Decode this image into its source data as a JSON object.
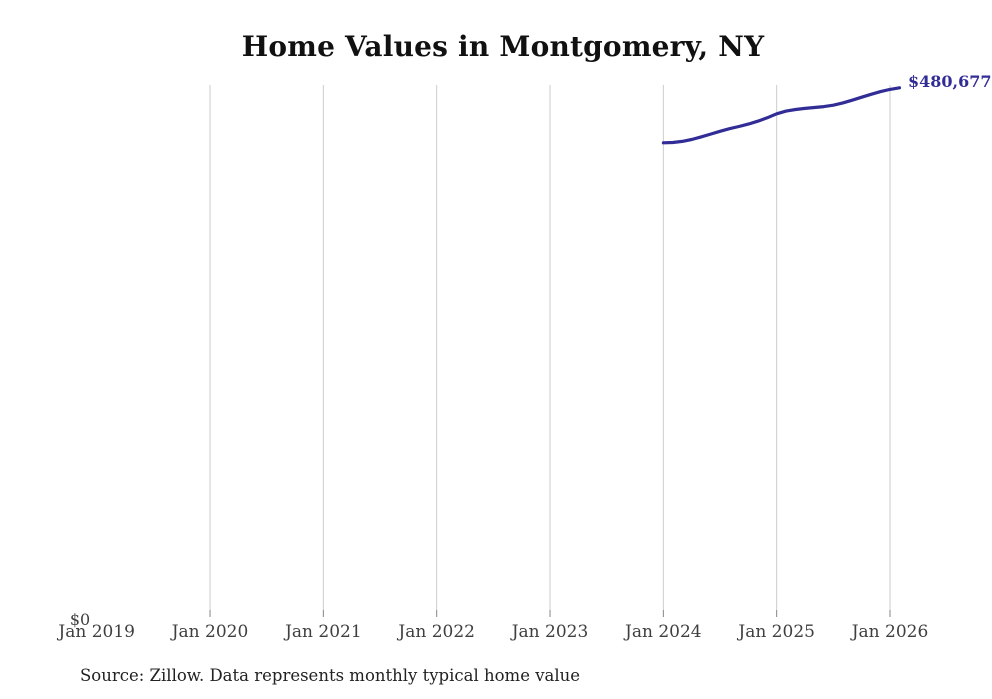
{
  "title": "Home Values in Montgomery, NY",
  "source_note": "Source: Zillow. Data represents monthly typical home value",
  "colors": {
    "background": "#ffffff",
    "line": "#322d96",
    "end_label": "#322d96",
    "gridline": "#cccccc",
    "tick_mark": "#858585",
    "title_text": "#111111",
    "axis_text": "#3f3f3f",
    "source_text": "#222222"
  },
  "chart_data": {
    "type": "line",
    "title": "Home Values in Montgomery, NY",
    "grid": "vertical",
    "legend": "none",
    "y_axis": {
      "zero_label": "$0",
      "min": 0,
      "top_reference_value": 480677
    },
    "x_ticks": [
      {
        "label": "Jan 2019",
        "year": 2019,
        "gridline": false
      },
      {
        "label": "Jan 2020",
        "year": 2020,
        "gridline": true
      },
      {
        "label": "Jan 2021",
        "year": 2021,
        "gridline": true
      },
      {
        "label": "Jan 2022",
        "year": 2022,
        "gridline": true
      },
      {
        "label": "Jan 2023",
        "year": 2023,
        "gridline": true
      },
      {
        "label": "Jan 2024",
        "year": 2024,
        "gridline": true
      },
      {
        "label": "Jan 2025",
        "year": 2025,
        "gridline": true
      },
      {
        "label": "Jan 2026",
        "year": 2026,
        "gridline": true
      }
    ],
    "last_point_label": "$480,677",
    "series": [
      {
        "name": "Monthly typical home value",
        "points": [
          [
            "2024-01",
            431000
          ],
          [
            "2024-02",
            431300
          ],
          [
            "2024-03",
            432300
          ],
          [
            "2024-04",
            434000
          ],
          [
            "2024-05",
            436300
          ],
          [
            "2024-06",
            438900
          ],
          [
            "2024-07",
            441400
          ],
          [
            "2024-08",
            443700
          ],
          [
            "2024-09",
            445700
          ],
          [
            "2024-10",
            447900
          ],
          [
            "2024-11",
            450500
          ],
          [
            "2024-12",
            453600
          ],
          [
            "2025-01",
            457200
          ],
          [
            "2025-02",
            459600
          ],
          [
            "2025-03",
            461100
          ],
          [
            "2025-04",
            462100
          ],
          [
            "2025-05",
            462900
          ],
          [
            "2025-06",
            463700
          ],
          [
            "2025-07",
            465000
          ],
          [
            "2025-08",
            467000
          ],
          [
            "2025-09",
            469500
          ],
          [
            "2025-10",
            472200
          ],
          [
            "2025-11",
            474800
          ],
          [
            "2025-12",
            477200
          ],
          [
            "2026-01",
            479200
          ],
          [
            "2026-02",
            480677
          ]
        ]
      }
    ]
  }
}
